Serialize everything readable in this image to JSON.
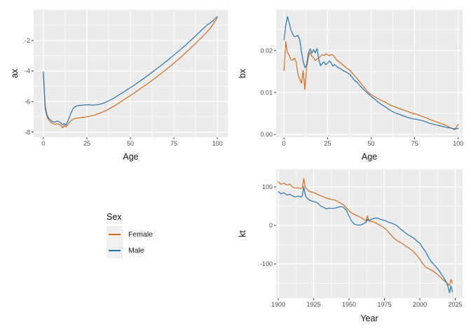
{
  "page": {
    "background": "#FFFFFF"
  },
  "theme": {
    "panel_bg": "#EBEBEB",
    "grid_color": "#FFFFFF",
    "tick_mark_color": "#333333",
    "tick_label_color": "#4D4D4D",
    "axis_title_color": "#111111",
    "legend_key_bg": "#F0F0F0",
    "female_color": "#D8691D",
    "male_color": "#2273B4"
  },
  "legend": {
    "title": "Sex",
    "position": "left-middle",
    "items": [
      {
        "label": "Female",
        "color": "#D8691D"
      },
      {
        "label": "Male",
        "color": "#2273B4"
      }
    ]
  },
  "chart_data": [
    {
      "id": "ax",
      "type": "line",
      "title": "",
      "xlabel": "Age",
      "ylabel": "ax",
      "grid": true,
      "xlim": [
        -5.6,
        106
      ],
      "ylim": [
        -8.34,
        0.02
      ],
      "x_tick_values": [
        0,
        25,
        50,
        75,
        100
      ],
      "x_tick_labels": [
        "0",
        "25",
        "50",
        "75",
        "100"
      ],
      "y_tick_values": [
        -2,
        -4,
        -6,
        -8
      ],
      "y_tick_labels": [
        "-2",
        "-4",
        "-6",
        "-8"
      ],
      "x_minor": [
        12.5,
        37.5,
        62.5,
        87.5
      ],
      "y_minor": [
        -1,
        -3,
        -5,
        -7
      ],
      "x": [
        0,
        1,
        2,
        3,
        4,
        5,
        6,
        7,
        8,
        9,
        10,
        11,
        12,
        13,
        14,
        15,
        16,
        17,
        18,
        19,
        20,
        22,
        24,
        26,
        28,
        30,
        32,
        34,
        36,
        38,
        40,
        42,
        44,
        46,
        48,
        50,
        52,
        54,
        56,
        58,
        60,
        62,
        64,
        66,
        68,
        70,
        72,
        74,
        76,
        78,
        80,
        82,
        84,
        86,
        88,
        90,
        92,
        94,
        96,
        98,
        100
      ],
      "series": [
        {
          "name": "Female",
          "color": "#D8691D",
          "y": [
            -4.15,
            -6.45,
            -6.95,
            -7.2,
            -7.32,
            -7.42,
            -7.47,
            -7.5,
            -7.46,
            -7.5,
            -7.56,
            -7.72,
            -7.56,
            -7.66,
            -7.52,
            -7.35,
            -7.25,
            -7.16,
            -7.12,
            -7.1,
            -7.08,
            -7.05,
            -7.02,
            -6.98,
            -6.93,
            -6.86,
            -6.78,
            -6.69,
            -6.59,
            -6.47,
            -6.34,
            -6.2,
            -6.06,
            -5.91,
            -5.76,
            -5.61,
            -5.46,
            -5.3,
            -5.14,
            -4.98,
            -4.82,
            -4.65,
            -4.48,
            -4.31,
            -4.13,
            -3.95,
            -3.77,
            -3.58,
            -3.39,
            -3.19,
            -2.99,
            -2.78,
            -2.57,
            -2.35,
            -2.13,
            -1.9,
            -1.67,
            -1.43,
            -1.18,
            -0.85,
            -0.52
          ]
        },
        {
          "name": "Male",
          "color": "#2273B4",
          "y": [
            -4.05,
            -6.3,
            -6.85,
            -7.08,
            -7.2,
            -7.3,
            -7.35,
            -7.33,
            -7.28,
            -7.33,
            -7.4,
            -7.52,
            -7.45,
            -7.55,
            -7.3,
            -7.02,
            -6.72,
            -6.48,
            -6.36,
            -6.3,
            -6.27,
            -6.24,
            -6.22,
            -6.21,
            -6.23,
            -6.22,
            -6.19,
            -6.13,
            -6.04,
            -5.93,
            -5.81,
            -5.67,
            -5.53,
            -5.39,
            -5.24,
            -5.09,
            -4.94,
            -4.78,
            -4.62,
            -4.46,
            -4.29,
            -4.12,
            -3.95,
            -3.78,
            -3.6,
            -3.42,
            -3.24,
            -3.05,
            -2.86,
            -2.67,
            -2.47,
            -2.27,
            -2.06,
            -1.85,
            -1.64,
            -1.42,
            -1.2,
            -0.99,
            -0.83,
            -0.65,
            -0.42
          ]
        }
      ]
    },
    {
      "id": "bx",
      "type": "line",
      "title": "",
      "xlabel": "Age",
      "ylabel": "bx",
      "grid": true,
      "xlim": [
        -4.5,
        102.5
      ],
      "ylim": [
        -0.00067,
        0.0297
      ],
      "x_tick_values": [
        0,
        25,
        50,
        75,
        100
      ],
      "x_tick_labels": [
        "0",
        "25",
        "50",
        "75",
        "100"
      ],
      "y_tick_values": [
        0,
        0.01,
        0.02
      ],
      "y_tick_labels": [
        "0.00",
        "0.01",
        "0.02"
      ],
      "x_minor": [
        12.5,
        37.5,
        62.5,
        87.5
      ],
      "y_minor": [
        0.005,
        0.015,
        0.025
      ],
      "x": [
        0,
        1,
        2,
        3,
        4,
        5,
        6,
        7,
        8,
        9,
        10,
        11,
        12,
        13,
        14,
        15,
        16,
        17,
        18,
        19,
        20,
        21,
        22,
        23,
        24,
        25,
        26,
        27,
        28,
        29,
        30,
        31,
        32,
        34,
        36,
        38,
        40,
        42,
        44,
        46,
        48,
        50,
        52,
        54,
        56,
        58,
        60,
        62,
        64,
        66,
        68,
        70,
        72,
        74,
        76,
        78,
        80,
        82,
        84,
        86,
        88,
        90,
        92,
        94,
        96,
        98,
        100
      ],
      "series": [
        {
          "name": "Female",
          "color": "#D8691D",
          "y": [
            0.0152,
            0.0221,
            0.0195,
            0.0188,
            0.0178,
            0.0177,
            0.0182,
            0.0172,
            0.0145,
            0.0132,
            0.0122,
            0.0152,
            0.0107,
            0.016,
            0.0185,
            0.0196,
            0.0186,
            0.0183,
            0.0176,
            0.018,
            0.0183,
            0.0186,
            0.019,
            0.0188,
            0.0192,
            0.019,
            0.0188,
            0.019,
            0.0189,
            0.0185,
            0.0178,
            0.0175,
            0.0172,
            0.0165,
            0.0158,
            0.0152,
            0.0142,
            0.0133,
            0.0122,
            0.0112,
            0.0102,
            0.0095,
            0.009,
            0.0085,
            0.0081,
            0.0077,
            0.0072,
            0.0068,
            0.0065,
            0.0062,
            0.0059,
            0.0056,
            0.0053,
            0.005,
            0.0048,
            0.0045,
            0.0042,
            0.0039,
            0.0035,
            0.0032,
            0.0029,
            0.0026,
            0.0023,
            0.0019,
            0.0015,
            0.0011,
            0.0024
          ]
        },
        {
          "name": "Male",
          "color": "#2273B4",
          "y": [
            0.0225,
            0.026,
            0.0281,
            0.0266,
            0.0249,
            0.0239,
            0.0233,
            0.0234,
            0.0236,
            0.0226,
            0.0199,
            0.0174,
            0.0159,
            0.0166,
            0.0194,
            0.0204,
            0.0194,
            0.0202,
            0.0194,
            0.0205,
            0.0178,
            0.0164,
            0.0169,
            0.0173,
            0.0166,
            0.017,
            0.0175,
            0.0171,
            0.0163,
            0.0166,
            0.0163,
            0.0159,
            0.0158,
            0.0152,
            0.0148,
            0.0142,
            0.0131,
            0.0124,
            0.0114,
            0.0106,
            0.0098,
            0.0091,
            0.0084,
            0.0077,
            0.0071,
            0.0066,
            0.006,
            0.0055,
            0.0051,
            0.0048,
            0.0045,
            0.0042,
            0.0039,
            0.0037,
            0.0036,
            0.0034,
            0.0032,
            0.0029,
            0.0026,
            0.0024,
            0.0022,
            0.002,
            0.0018,
            0.0016,
            0.0015,
            0.0013,
            0.0014
          ]
        }
      ]
    },
    {
      "id": "kt",
      "type": "line",
      "title": "",
      "xlabel": "Year",
      "ylabel": "kt",
      "grid": true,
      "xlim": [
        1898.5,
        2030.2
      ],
      "ylim": [
        -189,
        145.5
      ],
      "x_tick_values": [
        1900,
        1925,
        1950,
        1975,
        2000,
        2025
      ],
      "x_tick_labels": [
        "1900",
        "1925",
        "1950",
        "1975",
        "2000",
        "2025"
      ],
      "y_tick_values": [
        100,
        0,
        -100
      ],
      "y_tick_labels": [
        "100",
        "0",
        "-100"
      ],
      "x_minor": [
        1912.5,
        1937.5,
        1962.5,
        1987.5,
        2012.5
      ],
      "y_minor": [
        50,
        -50,
        -150
      ],
      "x": [
        1900,
        1902,
        1904,
        1906,
        1908,
        1910,
        1912,
        1914,
        1916,
        1917,
        1918,
        1919,
        1920,
        1922,
        1924,
        1926,
        1928,
        1930,
        1932,
        1934,
        1936,
        1938,
        1940,
        1942,
        1944,
        1945,
        1946,
        1948,
        1950,
        1952,
        1954,
        1956,
        1958,
        1960,
        1962,
        1963,
        1964,
        1966,
        1968,
        1970,
        1972,
        1974,
        1976,
        1978,
        1980,
        1982,
        1984,
        1986,
        1988,
        1990,
        1992,
        1994,
        1996,
        1998,
        2000,
        2002,
        2004,
        2006,
        2008,
        2010,
        2012,
        2014,
        2016,
        2018,
        2019,
        2020,
        2021,
        2022,
        2023
      ],
      "series": [
        {
          "name": "Female",
          "color": "#D8691D",
          "y": [
            113,
            107,
            110,
            105,
            107,
            100,
            97,
            98,
            96,
            98,
            122,
            100,
            95,
            88,
            86,
            84,
            80,
            77,
            74,
            71,
            69,
            67,
            66,
            62,
            58,
            56,
            54,
            46,
            38,
            32,
            28,
            25,
            21,
            17,
            12,
            25,
            12,
            10,
            8,
            4,
            0,
            -4,
            -10,
            -18,
            -26,
            -34,
            -40,
            -44,
            -48,
            -54,
            -58,
            -63,
            -70,
            -78,
            -88,
            -99,
            -108,
            -112,
            -116,
            -120,
            -126,
            -133,
            -140,
            -146,
            -149,
            -153,
            -155,
            -140,
            -150
          ]
        },
        {
          "name": "Male",
          "color": "#2273B4",
          "y": [
            88,
            82,
            85,
            79,
            81,
            77,
            74,
            76,
            74,
            78,
            100,
            80,
            72,
            66,
            63,
            61,
            58,
            50,
            47,
            43,
            45,
            44,
            45,
            47,
            49,
            48,
            47,
            40,
            24,
            10,
            3,
            1,
            1,
            4,
            8,
            16,
            12,
            16,
            19,
            19,
            16,
            14,
            12,
            8,
            6,
            3,
            -1,
            -8,
            -14,
            -20,
            -25,
            -29,
            -34,
            -41,
            -46,
            -58,
            -68,
            -82,
            -94,
            -102,
            -110,
            -120,
            -131,
            -143,
            -150,
            -160,
            -175,
            -157,
            -172
          ]
        }
      ]
    }
  ]
}
